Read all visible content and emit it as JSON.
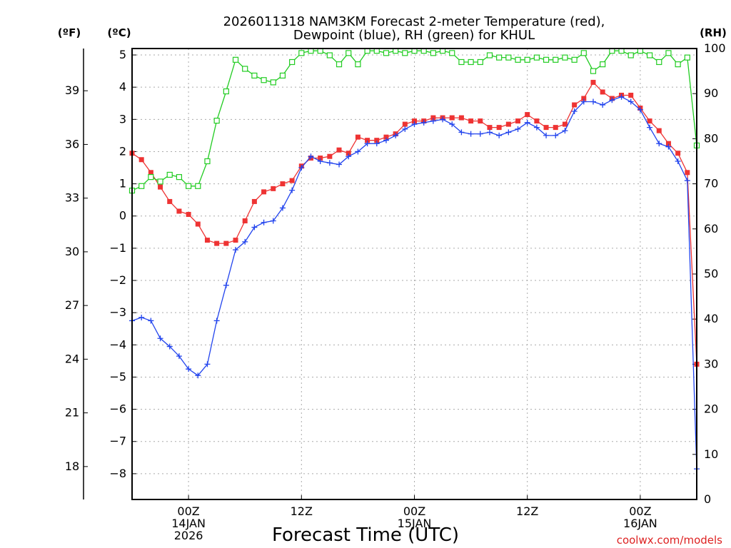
{
  "chart_data": {
    "type": "line",
    "title_line1": "2026011318 NAM3KM Forecast 2-meter Temperature (red),",
    "title_line2": "Dewpoint (blue), RH (green) for KHUL",
    "xlabel": "Forecast Time (UTC)",
    "credit": "coolwx.com/models",
    "left_f_unit": "(ºF)",
    "left_c_unit": "(ºC)",
    "right_unit": "(RH)",
    "x_unit": "forecast hour",
    "xlim": [
      0,
      60
    ],
    "ylim_c": [
      -8.8,
      5.2
    ],
    "ylim_rh": [
      0,
      100
    ],
    "f_ticks": [
      18,
      21,
      24,
      27,
      30,
      33,
      36,
      39
    ],
    "c_ticks": [
      -8,
      -7,
      -6,
      -5,
      -4,
      -3,
      -2,
      -1,
      0,
      1,
      2,
      3,
      4,
      5
    ],
    "rh_ticks": [
      0,
      10,
      20,
      30,
      40,
      50,
      60,
      70,
      80,
      90,
      100
    ],
    "x_ticks": [
      {
        "x": 6,
        "l1": "00Z",
        "l2": "14JAN",
        "l3": "2026"
      },
      {
        "x": 18,
        "l1": "12Z",
        "l2": "",
        "l3": ""
      },
      {
        "x": 30,
        "l1": "00Z",
        "l2": "15JAN",
        "l3": ""
      },
      {
        "x": 42,
        "l1": "12Z",
        "l2": "",
        "l3": ""
      },
      {
        "x": 54,
        "l1": "00Z",
        "l2": "16JAN",
        "l3": ""
      }
    ],
    "series": [
      {
        "name": "Temperature",
        "axis": "C",
        "color": "#ee3333",
        "marker": "filled-square",
        "x": [
          0,
          1,
          2,
          3,
          4,
          5,
          6,
          7,
          8,
          9,
          10,
          11,
          12,
          13,
          14,
          15,
          16,
          17,
          18,
          19,
          20,
          21,
          22,
          23,
          24,
          25,
          26,
          27,
          28,
          29,
          30,
          31,
          32,
          33,
          34,
          35,
          36,
          37,
          38,
          39,
          40,
          41,
          42,
          43,
          44,
          45,
          46,
          47,
          48,
          49,
          50,
          51,
          52,
          53,
          54,
          55,
          56,
          57,
          58,
          59,
          60
        ],
        "values": [
          1.95,
          1.75,
          1.35,
          0.9,
          0.45,
          0.15,
          0.05,
          -0.25,
          -0.75,
          -0.85,
          -0.85,
          -0.75,
          -0.15,
          0.45,
          0.75,
          0.85,
          1.0,
          1.1,
          1.55,
          1.8,
          1.8,
          1.85,
          2.05,
          1.95,
          2.45,
          2.35,
          2.35,
          2.45,
          2.55,
          2.85,
          2.95,
          2.95,
          3.05,
          3.05,
          3.05,
          3.05,
          2.95,
          2.95,
          2.75,
          2.75,
          2.85,
          2.95,
          3.15,
          2.95,
          2.75,
          2.75,
          2.85,
          3.45,
          3.65,
          4.15,
          3.85,
          3.65,
          3.75,
          3.75,
          3.35,
          2.95,
          2.65,
          2.25,
          1.95,
          1.35,
          -4.6
        ]
      },
      {
        "name": "Dewpoint",
        "axis": "C",
        "color": "#2244ee",
        "marker": "plus",
        "x": [
          0,
          1,
          2,
          3,
          4,
          5,
          6,
          7,
          8,
          9,
          10,
          11,
          12,
          13,
          14,
          15,
          16,
          17,
          18,
          19,
          20,
          21,
          22,
          23,
          24,
          25,
          26,
          27,
          28,
          29,
          30,
          31,
          32,
          33,
          34,
          35,
          36,
          37,
          38,
          39,
          40,
          41,
          42,
          43,
          44,
          45,
          46,
          47,
          48,
          49,
          50,
          51,
          52,
          53,
          54,
          55,
          56,
          57,
          58,
          59,
          60
        ],
        "values": [
          -3.25,
          -3.15,
          -3.25,
          -3.8,
          -4.05,
          -4.35,
          -4.75,
          -4.95,
          -4.6,
          -3.25,
          -2.15,
          -1.05,
          -0.8,
          -0.35,
          -0.2,
          -0.15,
          0.25,
          0.8,
          1.5,
          1.85,
          1.7,
          1.65,
          1.6,
          1.85,
          2.0,
          2.25,
          2.25,
          2.35,
          2.5,
          2.7,
          2.85,
          2.9,
          2.95,
          3.0,
          2.85,
          2.6,
          2.55,
          2.55,
          2.6,
          2.5,
          2.6,
          2.7,
          2.9,
          2.75,
          2.5,
          2.5,
          2.65,
          3.25,
          3.55,
          3.55,
          3.45,
          3.6,
          3.7,
          3.55,
          3.3,
          2.75,
          2.25,
          2.15,
          1.7,
          1.1,
          -7.85
        ]
      },
      {
        "name": "Relative Humidity",
        "axis": "RH",
        "color": "#22cc22",
        "marker": "open-square",
        "x": [
          0,
          1,
          2,
          3,
          4,
          5,
          6,
          7,
          8,
          9,
          10,
          11,
          12,
          13,
          14,
          15,
          16,
          17,
          18,
          19,
          20,
          21,
          22,
          23,
          24,
          25,
          26,
          27,
          28,
          29,
          30,
          31,
          32,
          33,
          34,
          35,
          36,
          37,
          38,
          39,
          40,
          41,
          42,
          43,
          44,
          45,
          46,
          47,
          48,
          49,
          50,
          51,
          52,
          53,
          54,
          55,
          56,
          57,
          58,
          59,
          60
        ],
        "values": [
          68.5,
          69.5,
          71.5,
          70.5,
          72,
          71.5,
          69.5,
          69.5,
          75,
          84,
          90.5,
          97.5,
          95.5,
          94,
          93,
          92.5,
          94,
          97,
          99,
          99.5,
          99.5,
          98.5,
          96.5,
          99,
          96.5,
          99.5,
          99.5,
          99,
          99.5,
          99,
          99.5,
          99.5,
          99,
          99.5,
          99,
          97,
          97,
          97,
          98.5,
          98,
          98,
          97.5,
          97.5,
          98,
          97.5,
          97.5,
          98,
          97.5,
          99,
          95,
          96.5,
          99.5,
          99.5,
          98.5,
          99.5,
          98.5,
          97,
          99,
          96.5,
          98,
          78.5
        ]
      }
    ]
  }
}
